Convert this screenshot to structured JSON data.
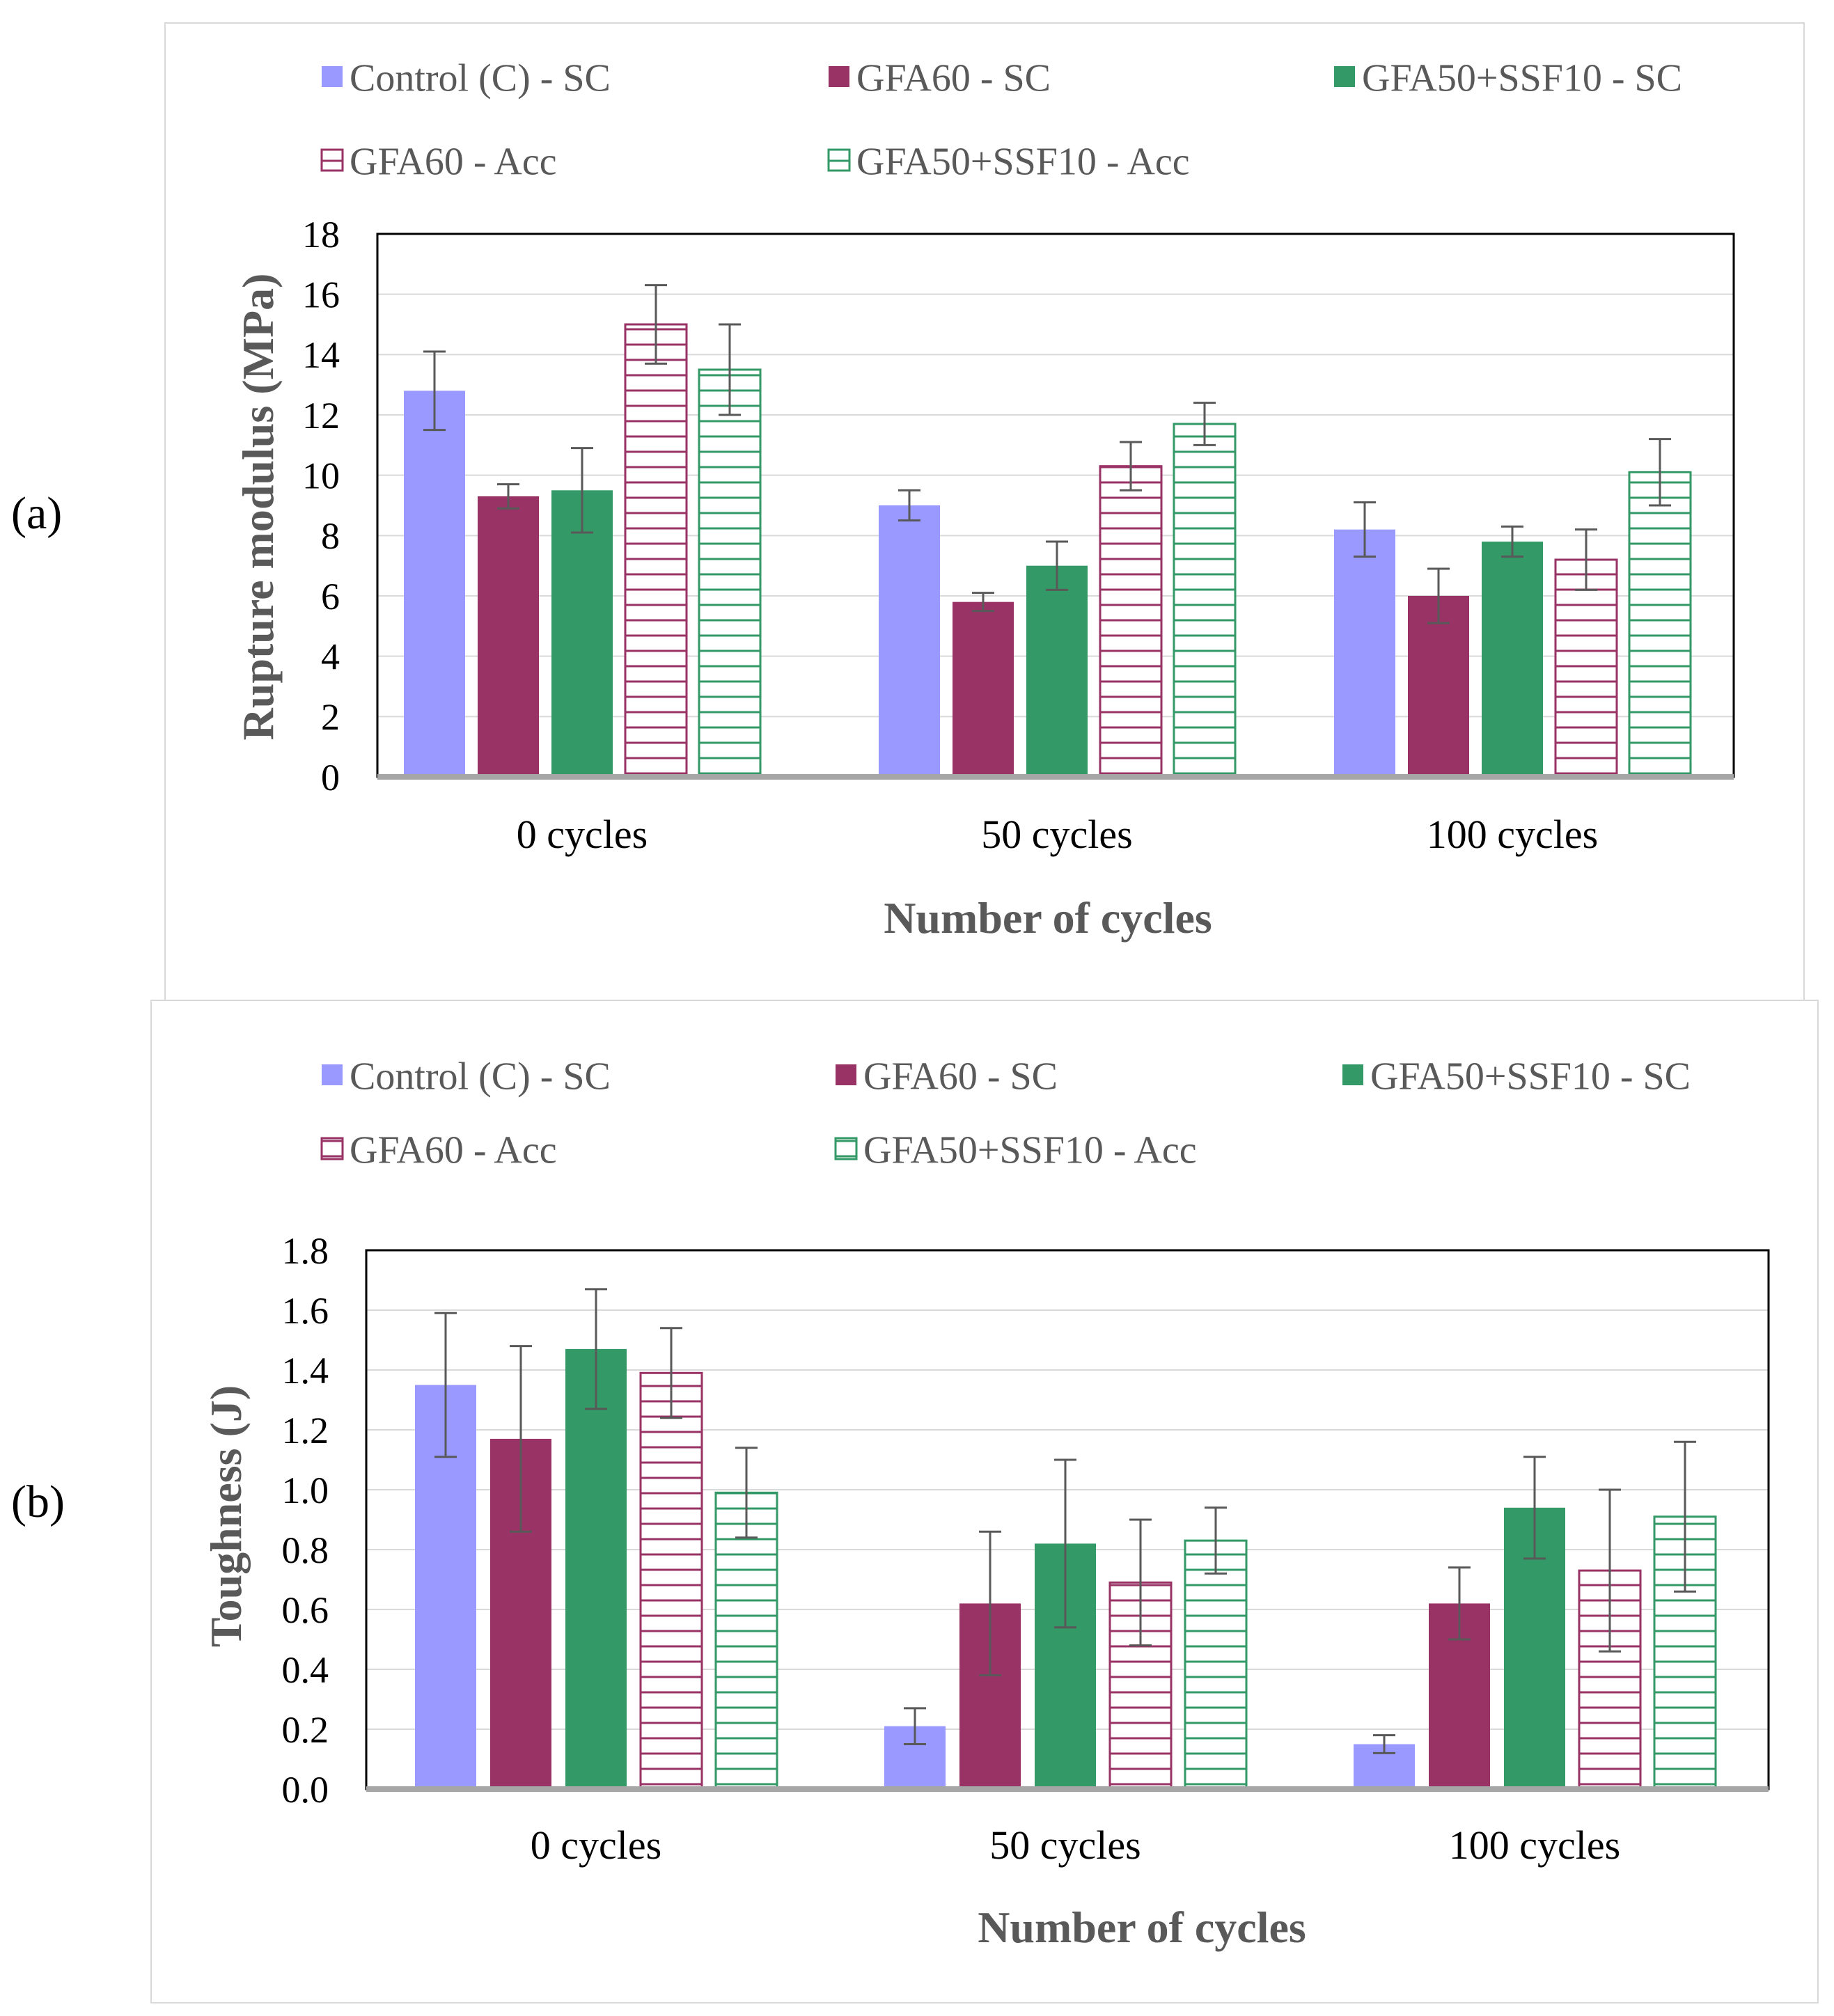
{
  "panel_labels": {
    "a": "(a)",
    "b": "(b)"
  },
  "chart_data": [
    {
      "type": "bar",
      "id": "a",
      "title": "",
      "xlabel": "Number  of cycles",
      "ylabel": "Rupture  modulus  (MPa)",
      "ylim": [
        0,
        18
      ],
      "yticks": [
        "0",
        "2",
        "4",
        "6",
        "8",
        "10",
        "12",
        "14",
        "16",
        "18"
      ],
      "categories": [
        "0 cycles",
        "50 cycles",
        "100 cycles"
      ],
      "grid": true,
      "legend_position": "top",
      "series": [
        {
          "name": "Control (C) - SC",
          "color": "#9999ff",
          "pattern": "solid",
          "values": [
            12.8,
            9.0,
            8.2
          ],
          "errors": [
            1.3,
            0.5,
            0.9
          ]
        },
        {
          "name": "GFA60 - SC",
          "color": "#993366",
          "pattern": "solid",
          "values": [
            9.3,
            5.8,
            6.0
          ],
          "errors": [
            0.4,
            0.3,
            0.9
          ]
        },
        {
          "name": "GFA50+SSF10 - SC",
          "color": "#339966",
          "pattern": "solid",
          "values": [
            9.5,
            7.0,
            7.8
          ],
          "errors": [
            1.4,
            0.8,
            0.5
          ]
        },
        {
          "name": "GFA60 - Acc",
          "color": "#993366",
          "pattern": "horizontal",
          "values": [
            15.0,
            10.3,
            7.2
          ],
          "errors": [
            1.3,
            0.8,
            1.0
          ]
        },
        {
          "name": "GFA50+SSF10 - Acc",
          "color": "#339966",
          "pattern": "horizontal",
          "values": [
            13.5,
            11.7,
            10.1
          ],
          "errors": [
            1.5,
            0.7,
            1.1
          ]
        }
      ]
    },
    {
      "type": "bar",
      "id": "b",
      "title": "",
      "xlabel": "Number  of cycles",
      "ylabel": "Toughness   (J)",
      "ylim": [
        0,
        1.8
      ],
      "yticks": [
        "0.0",
        "0.2",
        "0.4",
        "0.6",
        "0.8",
        "1.0",
        "1.2",
        "1.4",
        "1.6",
        "1.8"
      ],
      "categories": [
        "0 cycles",
        "50 cycles",
        "100 cycles"
      ],
      "grid": true,
      "legend_position": "top",
      "series": [
        {
          "name": "Control (C) - SC",
          "color": "#9999ff",
          "pattern": "solid",
          "values": [
            1.35,
            0.21,
            0.15
          ],
          "errors": [
            0.24,
            0.06,
            0.03
          ]
        },
        {
          "name": "GFA60 - SC",
          "color": "#993366",
          "pattern": "solid",
          "values": [
            1.17,
            0.62,
            0.62
          ],
          "errors": [
            0.31,
            0.24,
            0.12
          ]
        },
        {
          "name": "GFA50+SSF10 - SC",
          "color": "#339966",
          "pattern": "solid",
          "values": [
            1.47,
            0.82,
            0.94
          ],
          "errors": [
            0.2,
            0.28,
            0.17
          ]
        },
        {
          "name": "GFA60 - Acc",
          "color": "#993366",
          "pattern": "horizontal",
          "values": [
            1.39,
            0.69,
            0.73
          ],
          "errors": [
            0.15,
            0.21,
            0.27
          ]
        },
        {
          "name": "GFA50+SSF10 - Acc",
          "color": "#339966",
          "pattern": "horizontal",
          "values": [
            0.99,
            0.83,
            0.91
          ],
          "errors": [
            0.15,
            0.11,
            0.25
          ]
        }
      ]
    }
  ]
}
